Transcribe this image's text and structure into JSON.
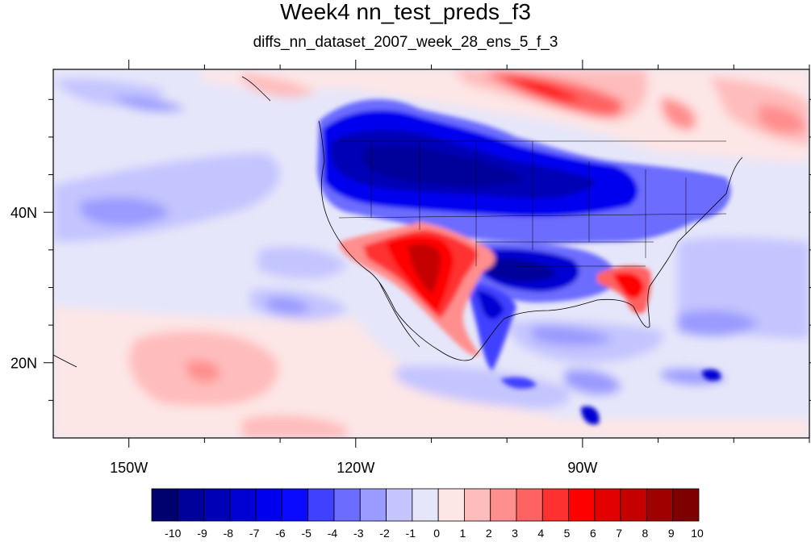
{
  "title": "Week4 nn_test_preds_f3",
  "subtitle": "diffs_nn_dataset_2007_week_28_ens_5_f_3",
  "map": {
    "lon_range": [
      -160,
      -60
    ],
    "lat_range": [
      10,
      59
    ],
    "lon_ticks": [
      {
        "value": -150,
        "label": "150W"
      },
      {
        "value": -120,
        "label": "120W"
      },
      {
        "value": -90,
        "label": "90W"
      }
    ],
    "lat_ticks": [
      {
        "value": 20,
        "label": "20N"
      },
      {
        "value": 40,
        "label": "40N"
      }
    ]
  },
  "colorbar": {
    "labels": [
      "-10",
      "-9",
      "-8",
      "-7",
      "-6",
      "-5",
      "-4",
      "-3",
      "-2",
      "-1",
      "0",
      "1",
      "2",
      "3",
      "4",
      "5",
      "6",
      "7",
      "8",
      "9",
      "10"
    ],
    "colors": [
      "#00006e",
      "#00009a",
      "#0000b6",
      "#0000d2",
      "#0000ee",
      "#0a0aff",
      "#4040ff",
      "#6c6cff",
      "#9a9aff",
      "#c4c4ff",
      "#e6e6fa",
      "#fde6e6",
      "#ffbcbc",
      "#ff8e8e",
      "#ff6262",
      "#ff3030",
      "#ff0000",
      "#e20000",
      "#c40000",
      "#a00000",
      "#7e0000"
    ]
  }
}
